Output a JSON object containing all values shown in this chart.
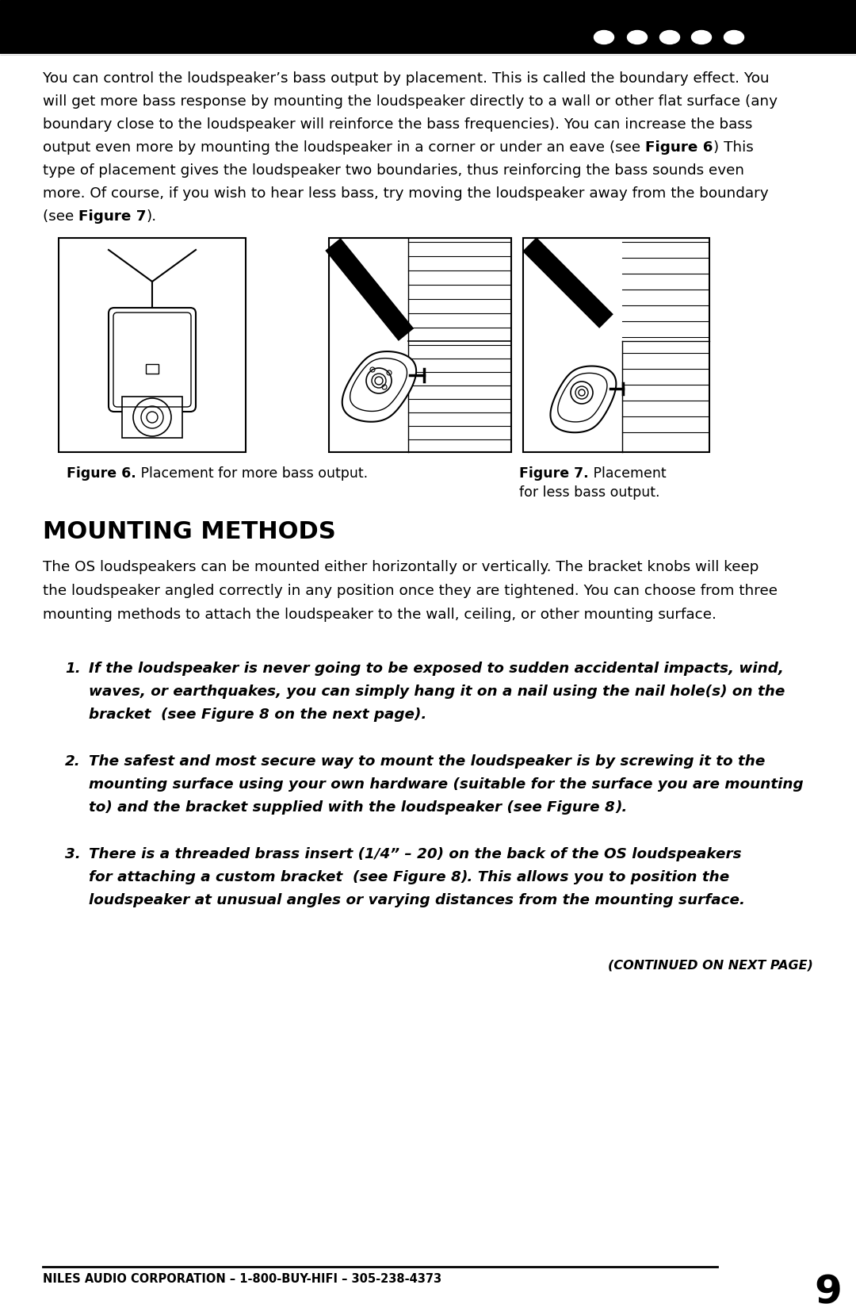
{
  "bg_color": "#ffffff",
  "header_bg": "#000000",
  "body_lines": [
    [
      [
        "You can control the loudspeaker’s bass output by placement. This is called the boundary effect. You",
        false
      ]
    ],
    [
      [
        "will get more bass response by mounting the loudspeaker directly to a wall or other flat surface (any",
        false
      ]
    ],
    [
      [
        "boundary close to the loudspeaker will reinforce the bass frequencies). You can increase the bass",
        false
      ]
    ],
    [
      [
        "output even more by mounting the loudspeaker in a corner or under an eave (see ",
        false
      ],
      [
        "Figure 6",
        true
      ],
      [
        ") This",
        false
      ]
    ],
    [
      [
        "type of placement gives the loudspeaker two boundaries, thus reinforcing the bass sounds even",
        false
      ]
    ],
    [
      [
        "more. Of course, if you wish to hear less bass, try moving the loudspeaker away from the boundary",
        false
      ]
    ],
    [
      [
        "(see ",
        false
      ],
      [
        "Figure 7",
        true
      ],
      [
        ").",
        false
      ]
    ]
  ],
  "section_title": "MOUNTING METHODS",
  "section_body_lines": [
    "The OS loudspeakers can be mounted either horizontally or vertically. The bracket knobs will keep",
    "the loudspeaker angled correctly in any position once they are tightened. You can choose from three",
    "mounting methods to attach the loudspeaker to the wall, ceiling, or other mounting surface."
  ],
  "item1_lines": [
    [
      [
        "If the loudspeaker is never going to be exposed to sudden accidental impacts, wind,",
        true,
        true
      ]
    ],
    [
      [
        "waves, or earthquakes, you can simply hang it on a nail using the nail hole(s) on the",
        true,
        true
      ]
    ],
    [
      [
        "bracket  (see ",
        true,
        true
      ],
      [
        "Figure 8",
        true,
        false
      ],
      [
        " on the next page).",
        true,
        true
      ]
    ]
  ],
  "item2_lines": [
    [
      [
        "The safest and most secure way to mount the loudspeaker is by screwing it to the",
        true,
        true
      ]
    ],
    [
      [
        "mounting surface using your own hardware (suitable for the surface you are mounting",
        true,
        true
      ]
    ],
    [
      [
        "to) and the bracket supplied with the loudspeaker (see ",
        true,
        true
      ],
      [
        "Figure 8",
        true,
        false
      ],
      [
        ").",
        true,
        true
      ]
    ]
  ],
  "item3_lines": [
    [
      [
        "There is a threaded brass insert (1/4” – 20) on the back of the OS loudspeakers",
        true,
        true
      ]
    ],
    [
      [
        "for attaching a custom bracket  (see ",
        true,
        true
      ],
      [
        "Figure 8",
        true,
        false
      ],
      [
        "). This allows you to position the",
        true,
        true
      ]
    ],
    [
      [
        "loudspeaker at unusual angles or varying distances from the mounting surface.",
        true,
        true
      ]
    ]
  ],
  "continued_text": "(CONTINUED ON NEXT PAGE)",
  "footer_text": "NILES AUDIO CORPORATION – 1-800-BUY-HIFI – 305-238-4373",
  "page_number": "9",
  "fig6_bold": "Figure 6.",
  "fig6_normal": " Placement for more bass output.",
  "fig7_bold": "Figure 7.",
  "fig7_normal": " Placement",
  "fig7_normal2": "for less bass output."
}
